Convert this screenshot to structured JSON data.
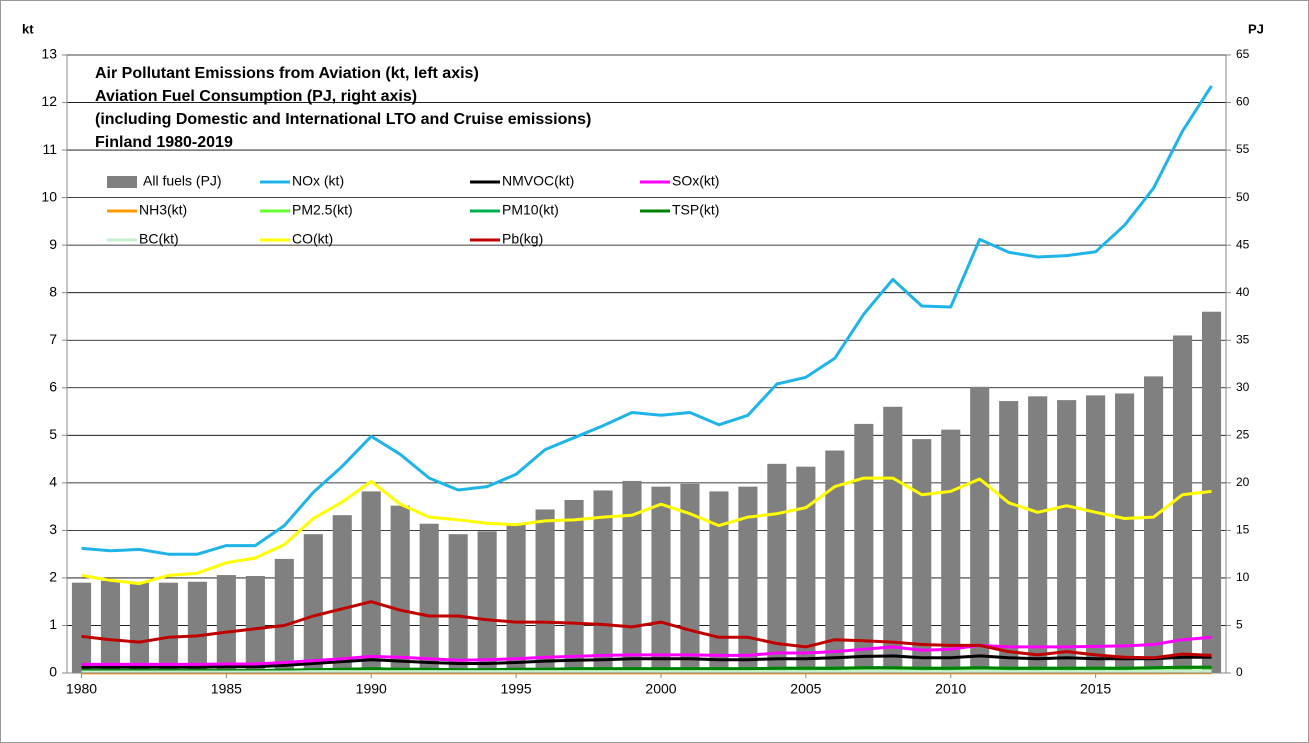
{
  "chart_data": {
    "type": "combo",
    "title": [
      "Air Pollutant Emissions from Aviation (kt, left axis)",
      "Aviation Fuel Consumption (PJ, right axis)",
      "(including Domestic and International LTO and Cruise emissions)",
      " Finland 1980-2019"
    ],
    "y_label": "kt",
    "y2_label": "PJ",
    "x": [
      1980,
      1981,
      1982,
      1983,
      1984,
      1985,
      1986,
      1987,
      1988,
      1989,
      1990,
      1991,
      1992,
      1993,
      1994,
      1995,
      1996,
      1997,
      1998,
      1999,
      2000,
      2001,
      2002,
      2003,
      2004,
      2005,
      2006,
      2007,
      2008,
      2009,
      2010,
      2011,
      2012,
      2013,
      2014,
      2015,
      2016,
      2017,
      2018,
      2019
    ],
    "xlim": [
      1979.5,
      2019.5
    ],
    "xticks": [
      1980,
      1985,
      1990,
      1995,
      2000,
      2005,
      2010,
      2015
    ],
    "ylim": [
      0,
      13
    ],
    "yticks": [
      0,
      1,
      2,
      3,
      4,
      5,
      6,
      7,
      8,
      9,
      10,
      11,
      12,
      13
    ],
    "y2lim": [
      0,
      65
    ],
    "y2ticks": [
      0,
      5,
      10,
      15,
      20,
      25,
      30,
      35,
      40,
      45,
      50,
      55,
      60,
      65
    ],
    "grid": true,
    "series": [
      {
        "name": "All fuels (PJ)",
        "type": "bar",
        "axis": "y2",
        "color": "#808080",
        "values": [
          9.5,
          9.7,
          9.5,
          9.5,
          9.6,
          10.3,
          10.2,
          12.0,
          14.6,
          16.6,
          19.1,
          17.6,
          15.7,
          14.6,
          14.9,
          15.7,
          17.2,
          18.2,
          19.2,
          20.2,
          19.6,
          19.9,
          19.1,
          19.6,
          22.0,
          21.7,
          23.4,
          26.2,
          28.0,
          24.6,
          25.6,
          30.1,
          28.6,
          29.1,
          28.7,
          29.2,
          29.4,
          31.2,
          35.5,
          38.0
        ]
      },
      {
        "name": "NOx (kt)",
        "type": "line",
        "color": "#1fb4e8",
        "values": [
          2.62,
          2.57,
          2.6,
          2.5,
          2.5,
          2.68,
          2.68,
          3.1,
          3.8,
          4.35,
          4.98,
          4.6,
          4.1,
          3.85,
          3.92,
          4.18,
          4.7,
          4.95,
          5.2,
          5.48,
          5.42,
          5.48,
          5.22,
          5.42,
          6.08,
          6.22,
          6.62,
          7.55,
          8.28,
          7.72,
          7.7,
          9.12,
          8.85,
          8.75,
          8.78,
          8.86,
          9.42,
          10.2,
          11.4,
          12.35
        ]
      },
      {
        "name": "NMVOC(kt)",
        "type": "line",
        "color": "#000000",
        "values": [
          0.12,
          0.12,
          0.12,
          0.12,
          0.12,
          0.13,
          0.13,
          0.16,
          0.2,
          0.24,
          0.28,
          0.25,
          0.22,
          0.2,
          0.2,
          0.22,
          0.25,
          0.27,
          0.28,
          0.3,
          0.3,
          0.3,
          0.28,
          0.28,
          0.3,
          0.3,
          0.32,
          0.35,
          0.36,
          0.32,
          0.32,
          0.36,
          0.32,
          0.3,
          0.32,
          0.3,
          0.3,
          0.3,
          0.33,
          0.33
        ]
      },
      {
        "name": "SOx(kt)",
        "type": "line",
        "color": "#ff00ff",
        "values": [
          0.18,
          0.18,
          0.18,
          0.18,
          0.18,
          0.19,
          0.19,
          0.22,
          0.26,
          0.3,
          0.35,
          0.33,
          0.3,
          0.27,
          0.28,
          0.3,
          0.33,
          0.35,
          0.37,
          0.38,
          0.38,
          0.38,
          0.37,
          0.37,
          0.42,
          0.42,
          0.45,
          0.5,
          0.55,
          0.48,
          0.5,
          0.58,
          0.55,
          0.55,
          0.55,
          0.56,
          0.57,
          0.6,
          0.7,
          0.75
        ]
      },
      {
        "name": "NH3(kt)",
        "type": "line",
        "color": "#ff9900",
        "values": [
          0.002,
          0.002,
          0.002,
          0.002,
          0.002,
          0.002,
          0.002,
          0.002,
          0.002,
          0.002,
          0.002,
          0.002,
          0.002,
          0.002,
          0.002,
          0.002,
          0.002,
          0.002,
          0.002,
          0.002,
          0.002,
          0.002,
          0.002,
          0.002,
          0.003,
          0.003,
          0.003,
          0.003,
          0.003,
          0.003,
          0.003,
          0.003,
          0.003,
          0.003,
          0.003,
          0.003,
          0.003,
          0.003,
          0.004,
          0.004
        ]
      },
      {
        "name": "PM2.5(kt)",
        "type": "line",
        "color": "#66ff33",
        "values": [
          0.04,
          0.04,
          0.04,
          0.04,
          0.04,
          0.04,
          0.04,
          0.05,
          0.06,
          0.07,
          0.08,
          0.07,
          0.07,
          0.06,
          0.06,
          0.07,
          0.07,
          0.08,
          0.08,
          0.08,
          0.08,
          0.08,
          0.08,
          0.08,
          0.09,
          0.09,
          0.09,
          0.1,
          0.1,
          0.09,
          0.09,
          0.1,
          0.09,
          0.09,
          0.09,
          0.09,
          0.09,
          0.1,
          0.11,
          0.11
        ]
      },
      {
        "name": "PM10(kt)",
        "type": "line",
        "color": "#00b050",
        "values": [
          0.05,
          0.05,
          0.05,
          0.05,
          0.05,
          0.05,
          0.05,
          0.06,
          0.07,
          0.08,
          0.09,
          0.08,
          0.08,
          0.07,
          0.07,
          0.08,
          0.08,
          0.09,
          0.09,
          0.09,
          0.09,
          0.09,
          0.09,
          0.09,
          0.1,
          0.1,
          0.1,
          0.11,
          0.11,
          0.1,
          0.1,
          0.11,
          0.1,
          0.1,
          0.1,
          0.1,
          0.1,
          0.11,
          0.12,
          0.12
        ]
      },
      {
        "name": "TSP(kt)",
        "type": "line",
        "color": "#008000",
        "values": [
          0.05,
          0.05,
          0.05,
          0.05,
          0.05,
          0.05,
          0.05,
          0.06,
          0.07,
          0.08,
          0.09,
          0.08,
          0.08,
          0.07,
          0.07,
          0.08,
          0.08,
          0.09,
          0.09,
          0.09,
          0.09,
          0.09,
          0.09,
          0.09,
          0.1,
          0.1,
          0.1,
          0.11,
          0.11,
          0.1,
          0.1,
          0.11,
          0.1,
          0.1,
          0.1,
          0.1,
          0.1,
          0.11,
          0.12,
          0.12
        ]
      },
      {
        "name": "BC(kt)",
        "type": "line",
        "color": "#c6efce",
        "values": [
          0.02,
          0.02,
          0.02,
          0.02,
          0.02,
          0.02,
          0.02,
          0.02,
          0.03,
          0.03,
          0.03,
          0.03,
          0.03,
          0.03,
          0.03,
          0.03,
          0.03,
          0.03,
          0.03,
          0.03,
          0.03,
          0.03,
          0.03,
          0.03,
          0.03,
          0.03,
          0.03,
          0.04,
          0.04,
          0.03,
          0.03,
          0.04,
          0.03,
          0.03,
          0.03,
          0.03,
          0.03,
          0.04,
          0.04,
          0.04
        ]
      },
      {
        "name": "CO(kt)",
        "type": "line",
        "color": "#ffff00",
        "values": [
          2.05,
          1.95,
          1.88,
          2.05,
          2.1,
          2.32,
          2.42,
          2.7,
          3.25,
          3.6,
          4.03,
          3.55,
          3.28,
          3.22,
          3.15,
          3.12,
          3.2,
          3.22,
          3.28,
          3.32,
          3.55,
          3.35,
          3.1,
          3.28,
          3.35,
          3.48,
          3.92,
          4.1,
          4.1,
          3.75,
          3.82,
          4.08,
          3.58,
          3.38,
          3.52,
          3.38,
          3.25,
          3.28,
          3.75,
          3.82
        ]
      },
      {
        "name": "Pb(kg)",
        "type": "line",
        "color": "#c00000",
        "values": [
          0.77,
          0.7,
          0.65,
          0.75,
          0.78,
          0.86,
          0.93,
          1.0,
          1.2,
          1.35,
          1.5,
          1.32,
          1.2,
          1.2,
          1.12,
          1.07,
          1.07,
          1.05,
          1.02,
          0.97,
          1.07,
          0.9,
          0.75,
          0.75,
          0.62,
          0.55,
          0.7,
          0.68,
          0.65,
          0.6,
          0.58,
          0.58,
          0.45,
          0.38,
          0.45,
          0.38,
          0.33,
          0.32,
          0.4,
          0.37
        ]
      }
    ]
  }
}
